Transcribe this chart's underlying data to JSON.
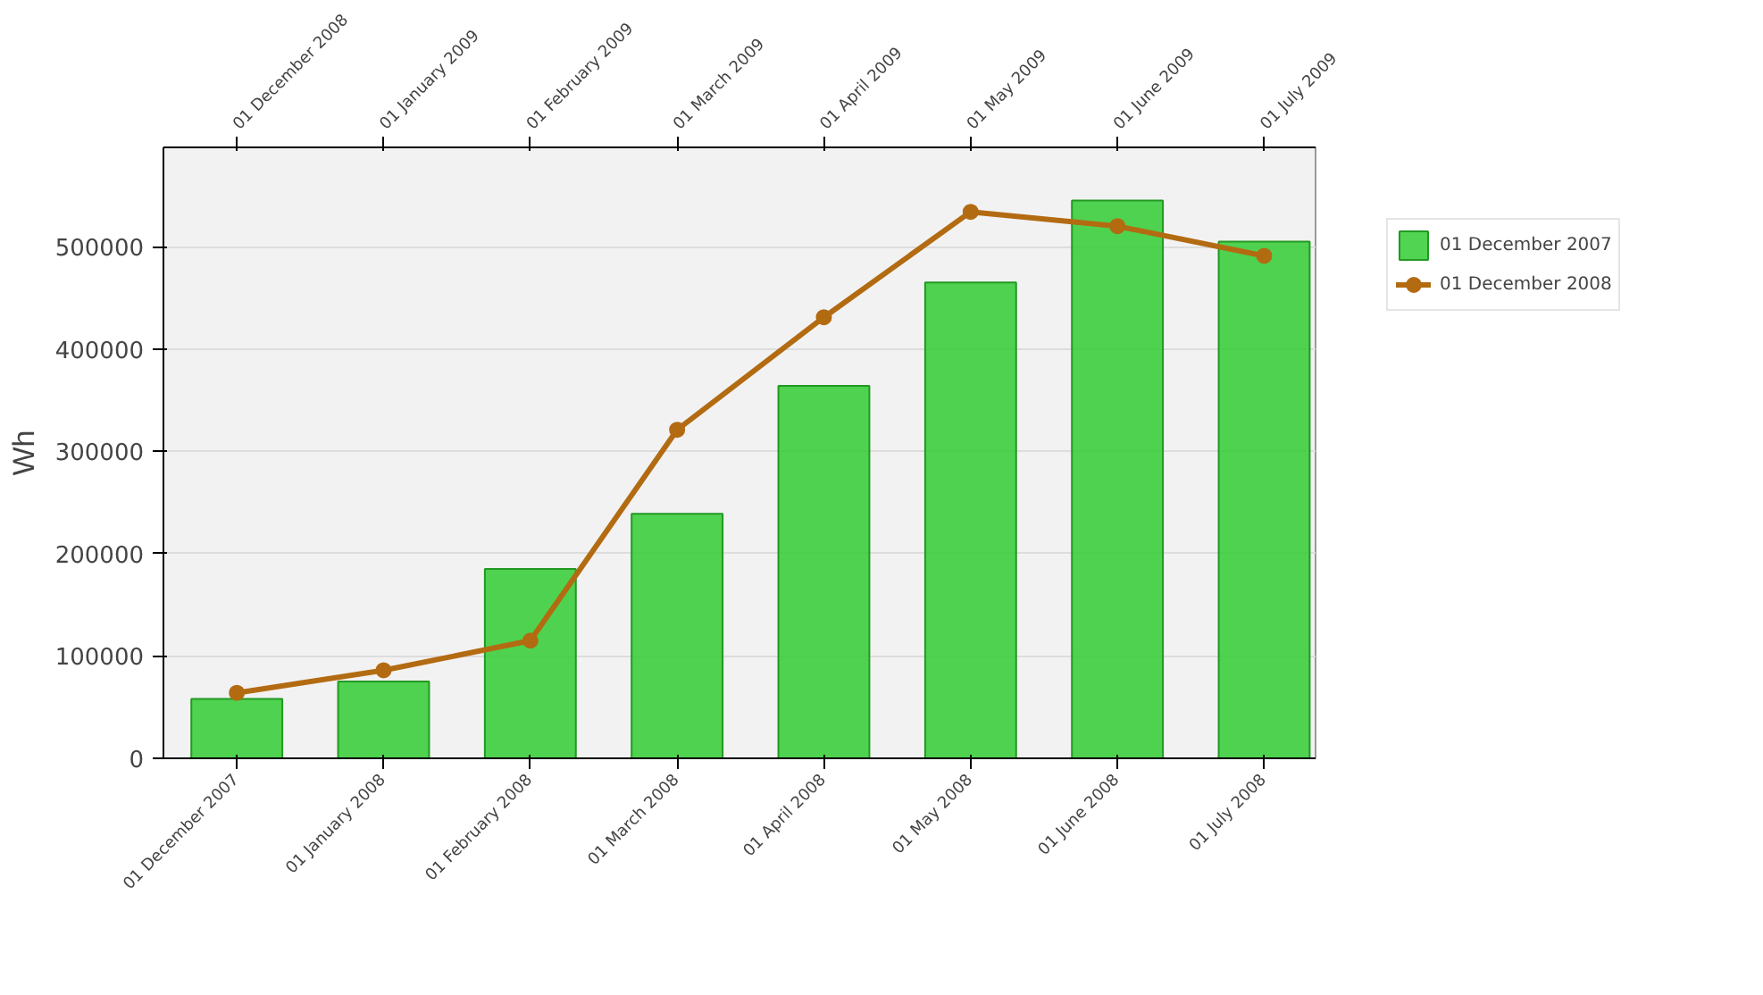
{
  "chart_data": {
    "type": "bar",
    "ylabel": "Wh",
    "categories": [
      "01 December 2007",
      "01 January 2008",
      "01 February 2008",
      "01 March 2008",
      "01 April 2008",
      "01 May 2008",
      "01 June 2008",
      "01 July 2008"
    ],
    "annotations": [
      "01 December 2008",
      "01 January 2009",
      "01 February 2009",
      "01 March 2009",
      "01 April 2009",
      "01 May 2009",
      "01 June 2009",
      "01 July 2009"
    ],
    "series": [
      {
        "name": "01 December 2007",
        "color": "#33cc33",
        "values": [
          58000,
          75000,
          185000,
          239000,
          364000,
          465000,
          545000,
          505000
        ]
      },
      {
        "name": "01 December 2008",
        "type": "line",
        "color": "#b36b12",
        "values": [
          64000,
          86000,
          115000,
          321000,
          431000,
          534000,
          520000,
          491000
        ]
      }
    ],
    "ylim": [
      0,
      597000
    ],
    "yticks": [
      0,
      100000,
      200000,
      300000,
      400000,
      500000
    ],
    "grid": "y",
    "legend": "top right",
    "marker": "circle"
  }
}
